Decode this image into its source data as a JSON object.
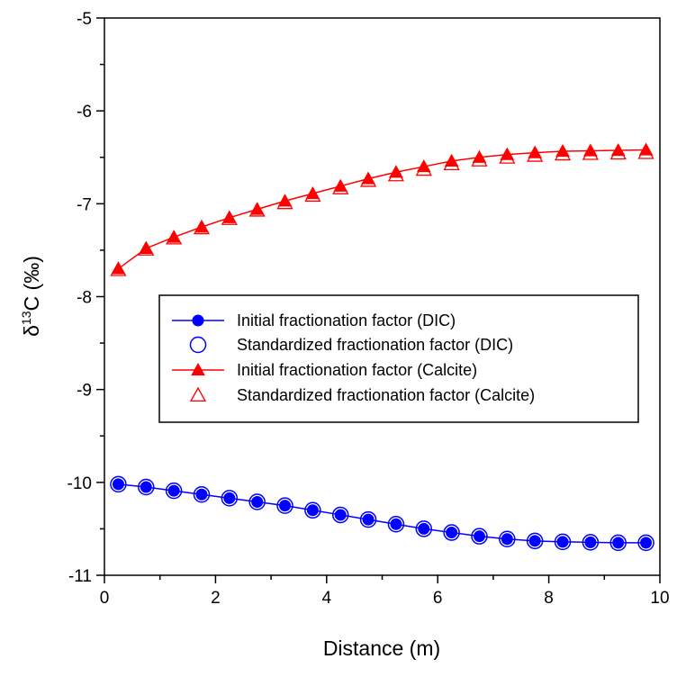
{
  "chart_data": {
    "type": "line",
    "title": "",
    "xlabel": "Distance (m)",
    "ylabel": {
      "prefix": "δ",
      "superscript": "13",
      "suffix": "C (‰)"
    },
    "xlim": [
      0,
      10
    ],
    "ylim": [
      -11,
      -5
    ],
    "x_ticks": [
      "0",
      "2",
      "4",
      "6",
      "8",
      "10"
    ],
    "y_ticks": [
      "-5",
      "-6",
      "-7",
      "-8",
      "-9",
      "-10",
      "-11"
    ],
    "grid": false,
    "legend_position": "center-right",
    "x": [
      0.25,
      0.75,
      1.25,
      1.75,
      2.25,
      2.75,
      3.25,
      3.75,
      4.25,
      4.75,
      5.25,
      5.75,
      6.25,
      6.75,
      7.25,
      7.75,
      8.25,
      8.75,
      9.25,
      9.75
    ],
    "series": [
      {
        "name": "Initial fractionation factor (DIC)",
        "color": "#0000ff",
        "marker": "filled-circle",
        "line": true,
        "values": [
          -10.02,
          -10.05,
          -10.09,
          -10.13,
          -10.17,
          -10.21,
          -10.25,
          -10.3,
          -10.35,
          -10.4,
          -10.45,
          -10.5,
          -10.54,
          -10.58,
          -10.61,
          -10.63,
          -10.64,
          -10.645,
          -10.65,
          -10.65
        ]
      },
      {
        "name": "Standardized fractionation factor (DIC)",
        "color": "#0000ff",
        "marker": "open-circle",
        "line": false,
        "values": [
          -10.02,
          -10.05,
          -10.09,
          -10.13,
          -10.17,
          -10.21,
          -10.25,
          -10.3,
          -10.35,
          -10.4,
          -10.45,
          -10.5,
          -10.54,
          -10.58,
          -10.61,
          -10.63,
          -10.64,
          -10.645,
          -10.65,
          -10.65
        ]
      },
      {
        "name": "Initial fractionation factor (Calcite)",
        "color": "#ff0000",
        "marker": "filled-triangle",
        "line": true,
        "values": [
          -7.7,
          -7.48,
          -7.36,
          -7.25,
          -7.15,
          -7.06,
          -6.97,
          -6.89,
          -6.81,
          -6.73,
          -6.66,
          -6.6,
          -6.54,
          -6.5,
          -6.47,
          -6.45,
          -6.435,
          -6.43,
          -6.425,
          -6.42
        ]
      },
      {
        "name": "Standardized fractionation factor (Calcite)",
        "color": "#ff0000",
        "marker": "open-triangle",
        "line": false,
        "values": [
          -7.71,
          -7.49,
          -7.37,
          -7.26,
          -7.16,
          -7.07,
          -6.99,
          -6.91,
          -6.83,
          -6.75,
          -6.69,
          -6.63,
          -6.57,
          -6.53,
          -6.5,
          -6.48,
          -6.465,
          -6.46,
          -6.455,
          -6.45
        ]
      }
    ]
  }
}
